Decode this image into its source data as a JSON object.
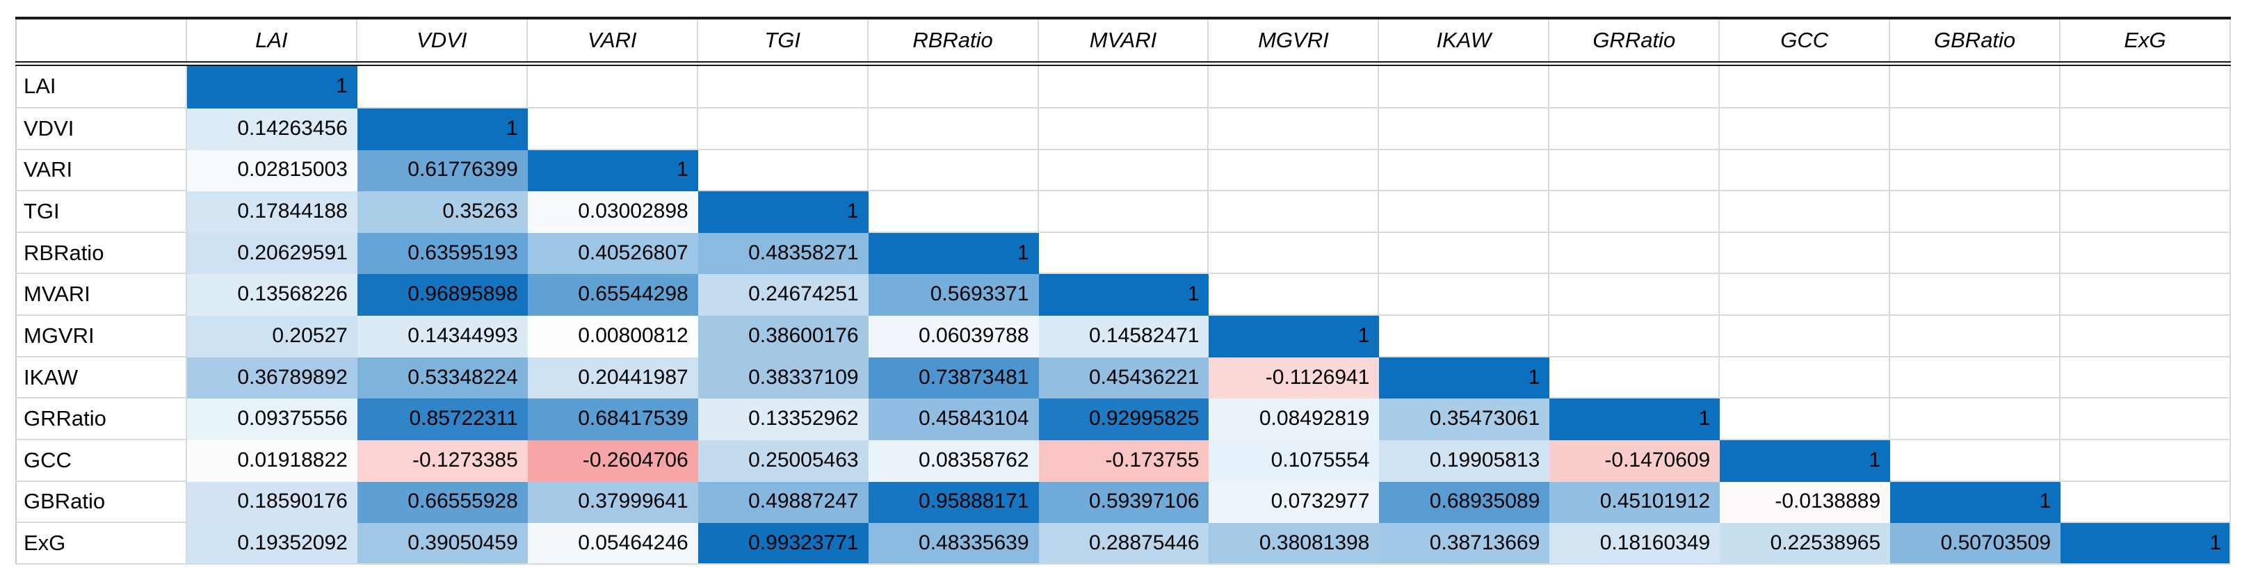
{
  "chart_data": {
    "type": "heatmap",
    "title": "",
    "corner_label": "",
    "variables": [
      "LAI",
      "VDVI",
      "VARI",
      "TGI",
      "RBRatio",
      "MVARI",
      "MGVRI",
      "IKAW",
      "GRRatio",
      "GCC",
      "GBRatio",
      "ExG"
    ],
    "rows": [
      {
        "label": "LAI",
        "values": [
          "1"
        ]
      },
      {
        "label": "VDVI",
        "values": [
          "0.14263456",
          "1"
        ]
      },
      {
        "label": "VARI",
        "values": [
          "0.02815003",
          "0.61776399",
          "1"
        ]
      },
      {
        "label": "TGI",
        "values": [
          "0.17844188",
          "0.35263",
          "0.03002898",
          "1"
        ]
      },
      {
        "label": "RBRatio",
        "values": [
          "0.20629591",
          "0.63595193",
          "0.40526807",
          "0.48358271",
          "1"
        ]
      },
      {
        "label": "MVARI",
        "values": [
          "0.13568226",
          "0.96895898",
          "0.65544298",
          "0.24674251",
          "0.5693371",
          "1"
        ]
      },
      {
        "label": "MGVRI",
        "values": [
          "0.20527",
          "0.14344993",
          "0.00800812",
          "0.38600176",
          "0.06039788",
          "0.14582471",
          "1"
        ]
      },
      {
        "label": "IKAW",
        "values": [
          "0.36789892",
          "0.53348224",
          "0.20441987",
          "0.38337109",
          "0.73873481",
          "0.45436221",
          "-0.1126941",
          "1"
        ]
      },
      {
        "label": "GRRatio",
        "values": [
          "0.09375556",
          "0.85722311",
          "0.68417539",
          "0.13352962",
          "0.45843104",
          "0.92995825",
          "0.08492819",
          "0.35473061",
          "1"
        ]
      },
      {
        "label": "GCC",
        "values": [
          "0.01918822",
          "-0.1273385",
          "-0.2604706",
          "0.25005463",
          "0.08358762",
          "-0.173755",
          "0.1075554",
          "0.19905813",
          "-0.1470609",
          "1"
        ]
      },
      {
        "label": "GBRatio",
        "values": [
          "0.18590176",
          "0.66555928",
          "0.37999641",
          "0.49887247",
          "0.95888171",
          "0.59397106",
          "0.0732977",
          "0.68935089",
          "0.45101912",
          "-0.0138889",
          "1"
        ]
      },
      {
        "label": "ExG",
        "values": [
          "0.19352092",
          "0.39050459",
          "0.05464246",
          "0.99323771",
          "0.48335639",
          "0.28875446",
          "0.38081398",
          "0.38713669",
          "0.18160349",
          "0.22538965",
          "0.50703509",
          "1"
        ]
      }
    ],
    "layout": {
      "lower_triangle_only": true,
      "diagonal_value": "1",
      "legend": "none",
      "grid_on": true,
      "value_alignment": "right"
    },
    "color_scale": {
      "max_value": 1,
      "mid_value": 0,
      "min_value": -0.26,
      "max_color": "#0D70BE",
      "mid_color": "#FFFFFF",
      "min_color": "#F6A6A6"
    },
    "style_colors": {
      "grid_color": "#D9D9D9",
      "heavy_border_color": "#1A1A1A",
      "frame_color": "#C9C9C9",
      "text_color": "#000000",
      "background": "#FFFFFF"
    }
  }
}
